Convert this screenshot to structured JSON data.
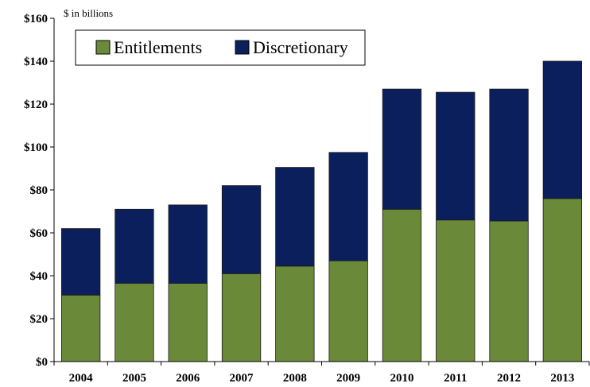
{
  "chart_data": {
    "type": "bar",
    "stacked": true,
    "title": "",
    "xlabel": "",
    "ylabel": "",
    "unit_note": "$ in billions",
    "categories": [
      "2004",
      "2005",
      "2006",
      "2007",
      "2008",
      "2009",
      "2010",
      "2011",
      "2012",
      "2013"
    ],
    "series": [
      {
        "name": "Entitlements",
        "color": "#6a8a3a",
        "values": [
          31,
          36.5,
          36.5,
          41,
          44.5,
          47,
          71,
          66,
          65.5,
          76
        ]
      },
      {
        "name": "Discretionary",
        "color": "#0a1f5c",
        "values": [
          31,
          34.5,
          36.5,
          41,
          46,
          50.5,
          56,
          59.5,
          61.5,
          64
        ]
      }
    ],
    "ylim": [
      0,
      160
    ],
    "yticks": [
      0,
      20,
      40,
      60,
      80,
      100,
      120,
      140,
      160
    ],
    "ytick_labels": [
      "$0",
      "$20",
      "$40",
      "$60",
      "$80",
      "$100",
      "$120",
      "$140",
      "$160"
    ],
    "grid": false,
    "legend_position": "top-left"
  }
}
